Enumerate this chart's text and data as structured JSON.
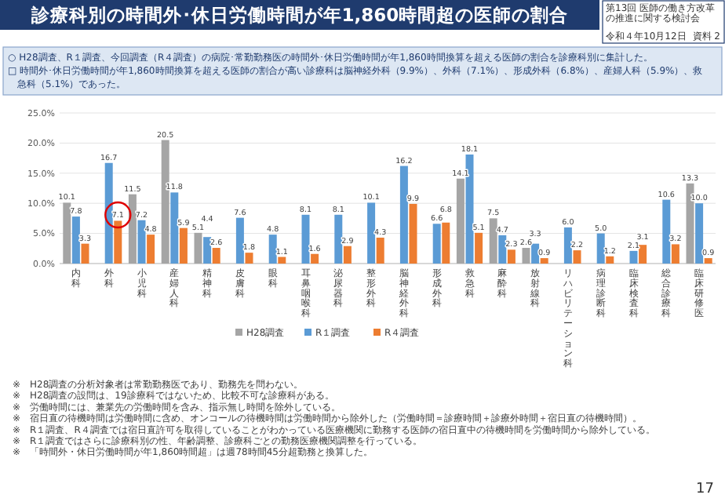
{
  "chart_data": {
    "type": "bar",
    "title": "診療科別の時間外･休日労働時間が年1,860時間超の医師の割合",
    "subtitle": "○ H28調査、R１調査、今回調査（R４調査）の病院･常勤勤務医の時間外･休日労働時間が年1,860時間換算を超える医師の割合を診療科別に集計した。",
    "categories": [
      "内科",
      "外科",
      "小児科",
      "産婦人科",
      "精神科",
      "皮膚科",
      "眼科",
      "耳鼻咽喉科",
      "泌尿器科",
      "整形外科",
      "脳神経外科",
      "形成外科",
      "救急科",
      "麻酔科",
      "放射線科",
      "リハビリテーション科",
      "病理診断科",
      "臨床検査科",
      "総合診療科",
      "臨床研修医"
    ],
    "series": [
      {
        "name": "H28調査",
        "color": "#a5a5a5",
        "values": [
          10.1,
          null,
          11.5,
          20.5,
          5.1,
          null,
          null,
          null,
          null,
          null,
          null,
          null,
          14.1,
          7.5,
          2.6,
          null,
          null,
          null,
          null,
          13.3
        ],
        "value_labels": [
          "10.1",
          null,
          "11.5",
          "20.5",
          "5.1",
          null,
          null,
          null,
          null,
          null,
          null,
          null,
          "14.1",
          "7.5",
          "2.6",
          null,
          null,
          null,
          null,
          "13.3"
        ]
      },
      {
        "name": "R１調査",
        "color": "#5b9bd5",
        "values": [
          7.8,
          16.7,
          7.2,
          11.8,
          4.4,
          7.6,
          4.8,
          8.1,
          8.1,
          10.1,
          16.2,
          6.6,
          18.1,
          4.7,
          3.3,
          6.0,
          5.0,
          2.1,
          10.6,
          10.0
        ],
        "value_labels": [
          "7.8",
          "16.7",
          "7.2",
          "11.8",
          "4.4",
          "7.6",
          "4.8",
          "8.1",
          "8.1",
          "10.1",
          "16.2",
          "6.6",
          "18.1",
          "4.7",
          "3.3",
          "6.0",
          "5.0",
          "2.1",
          "10.6",
          "10.0"
        ]
      },
      {
        "name": "R４調査",
        "color": "#ed7d31",
        "values": [
          3.3,
          7.1,
          4.8,
          5.9,
          2.6,
          1.8,
          1.1,
          1.6,
          2.9,
          4.3,
          9.9,
          6.8,
          5.1,
          2.3,
          0.9,
          2.2,
          1.2,
          3.1,
          3.2,
          0.9
        ],
        "value_labels": [
          "3.3",
          "7.1",
          "4.8",
          "5.9",
          "2.6",
          "1.8",
          "1.1",
          "1.6",
          "2.9",
          "4.3",
          "9.9",
          "6.8",
          "5.1",
          "2.3",
          "0.9",
          "2.2",
          "1.2",
          "3.1",
          "3.2",
          "0.9"
        ]
      }
    ],
    "ylim": [
      0,
      25
    ],
    "yticks": [
      {
        "value": 0,
        "label": "0.0%"
      },
      {
        "value": 5,
        "label": "5.0%"
      },
      {
        "value": 10,
        "label": "10.0%"
      },
      {
        "value": 15,
        "label": "15.0%"
      },
      {
        "value": 20,
        "label": "20.0%"
      },
      {
        "value": 25,
        "label": "25.0%"
      }
    ],
    "grid": "y",
    "legend": "bottom",
    "annotations": [
      "第13回 医師の働き方改革の推進に関する検討会",
      "令和４年10月12日",
      "資料 2",
      "□ 時間外･休日労働時間が年1,860時間換算を超える医師の割合が高い診療科は脳神経外科（9.9%）、外科（7.1%）、形成外科（6.8%）、産婦人科（5.9%）、救急科（5.1%）であった。",
      "※　H28調査の分析対象者は常勤勤務医であり、勤務先を問わない。",
      "※　H28調査の設問は、19診療科ではないため、比較不可な診療科がある。",
      "※　労働時間には、兼業先の労働時間を含み、指示無し時間を除外している。",
      "※　宿日直の待機時間は労働時間に含め、オンコールの待機時間は労働時間から除外した（労働時間＝診療時間＋診療外時間＋宿日直の待機時間）。",
      "※　R１調査、R４調査では宿日直許可を取得していることがわかっている医療機関に勤務する医師の宿日直中の待機時間を労働時間から除外している。",
      "※　R１調査ではさらに診療科別の性、年齢調整、診療科ごとの勤務医療機関調整を行っている。",
      "※　「時間外・休日労働時間が年1,860時間超」は週78時間45分超勤務と換算した。",
      "17"
    ]
  }
}
